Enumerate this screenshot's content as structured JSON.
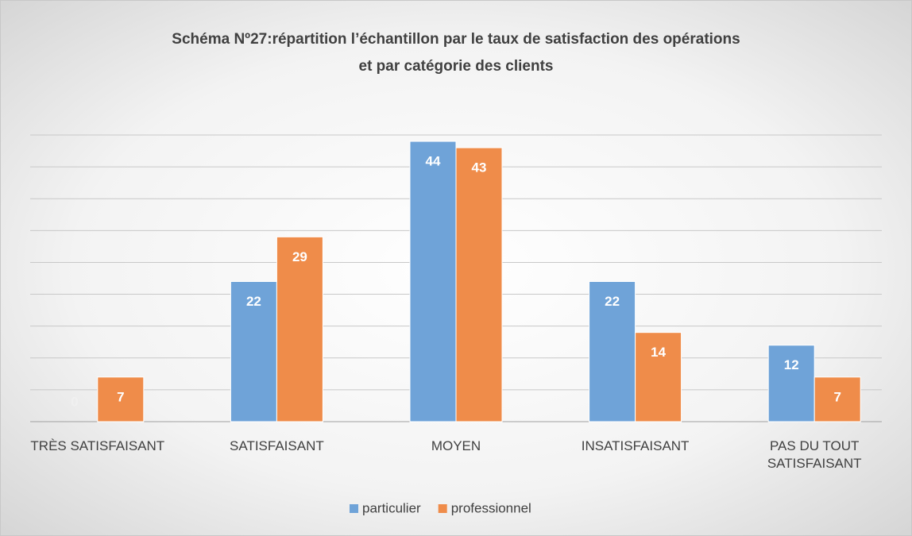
{
  "chart_data": {
    "type": "bar",
    "title": [
      "Schéma Nº27:répartition l’échantillon par le taux de satisfaction des opérations",
      "et par catégorie des clients"
    ],
    "categories": [
      "TRÈS SATISFAISANT",
      "SATISFAISANT",
      "MOYEN",
      "INSATISFAISANT",
      "PAS DU TOUT SATISFAISANT"
    ],
    "series": [
      {
        "name": "particulier",
        "color": "#6fa3d8",
        "values": [
          0,
          22,
          44,
          22,
          12
        ]
      },
      {
        "name": "professionnel",
        "color": "#ef8c4a",
        "values": [
          7,
          29,
          43,
          14,
          7
        ]
      }
    ],
    "ylim": [
      0,
      45
    ],
    "yticks": [
      0,
      5,
      10,
      15,
      20,
      25,
      30,
      35,
      40,
      45
    ],
    "grid": true,
    "legend": "bottom"
  }
}
